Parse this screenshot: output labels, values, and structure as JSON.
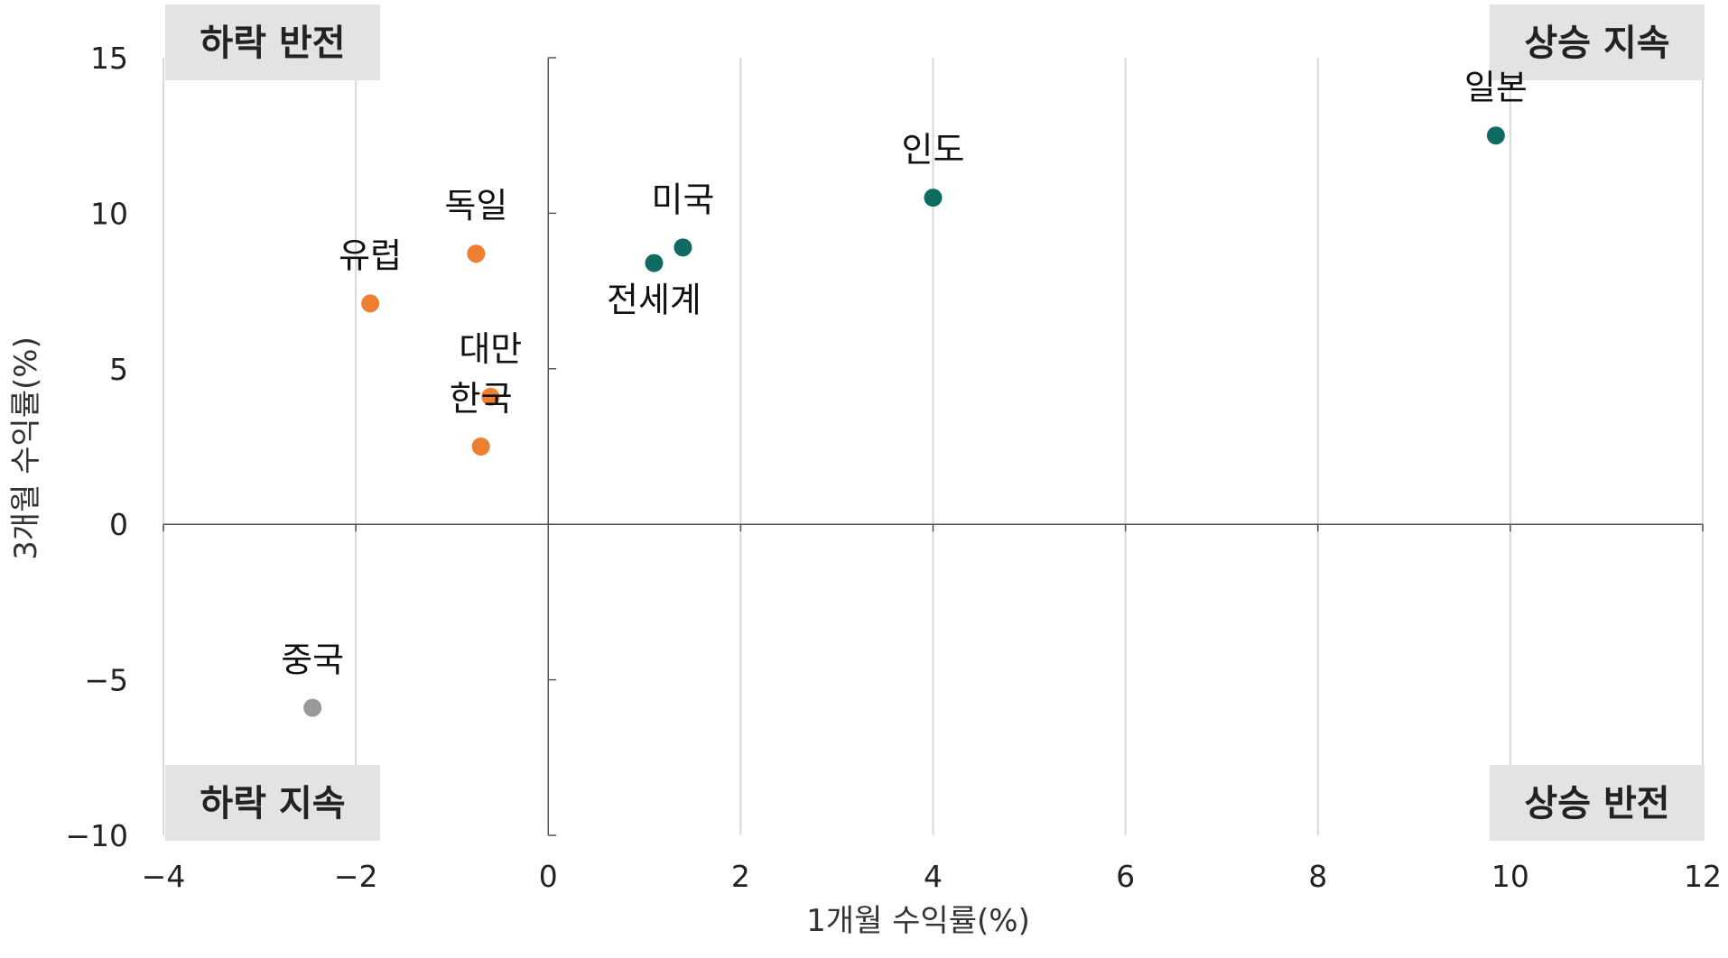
{
  "chart_data": {
    "type": "scatter",
    "xlabel": "1개월 수익률(%)",
    "ylabel": "3개월 수익률(%)",
    "xlim": [
      -4,
      12
    ],
    "ylim": [
      -10,
      15
    ],
    "x_ticks": [
      -4,
      -2,
      0,
      2,
      4,
      6,
      8,
      10,
      12
    ],
    "x_tick_labels": [
      "−4",
      "−2",
      "0",
      "2",
      "4",
      "6",
      "8",
      "10",
      "12"
    ],
    "y_ticks": [
      -10,
      -5,
      0,
      5,
      10,
      15
    ],
    "y_tick_labels": [
      "−10",
      "−5",
      "0",
      "5",
      "10",
      "15"
    ],
    "grid": "vertical",
    "quadrant_labels": {
      "top_left": "하락 반전",
      "top_right": "상승 지속",
      "bottom_left": "하락 지속",
      "bottom_right": "상승 반전"
    },
    "colors": {
      "rising": "#0d6b61",
      "falling": "#ee7f31",
      "china": "#999999",
      "quadrant_box": "#e3e3e3",
      "grid": "#d9d9d9",
      "axis": "#555555"
    },
    "points": [
      {
        "label": "일본",
        "x": 9.85,
        "y": 12.5,
        "group": "rising",
        "label_pos": "above"
      },
      {
        "label": "인도",
        "x": 4.0,
        "y": 10.5,
        "group": "rising",
        "label_pos": "above"
      },
      {
        "label": "미국",
        "x": 1.4,
        "y": 8.9,
        "group": "rising",
        "label_pos": "above"
      },
      {
        "label": "전세계",
        "x": 1.1,
        "y": 8.4,
        "group": "rising",
        "label_pos": "below"
      },
      {
        "label": "독일",
        "x": -0.75,
        "y": 8.7,
        "group": "falling",
        "label_pos": "above"
      },
      {
        "label": "유럽",
        "x": -1.85,
        "y": 7.1,
        "group": "falling",
        "label_pos": "above"
      },
      {
        "label": "대만",
        "x": -0.6,
        "y": 4.1,
        "group": "falling",
        "label_pos": "above"
      },
      {
        "label": "한국",
        "x": -0.7,
        "y": 2.5,
        "group": "falling",
        "label_pos": "above"
      },
      {
        "label": "중국",
        "x": -2.45,
        "y": -5.9,
        "group": "china",
        "label_pos": "above"
      }
    ]
  }
}
